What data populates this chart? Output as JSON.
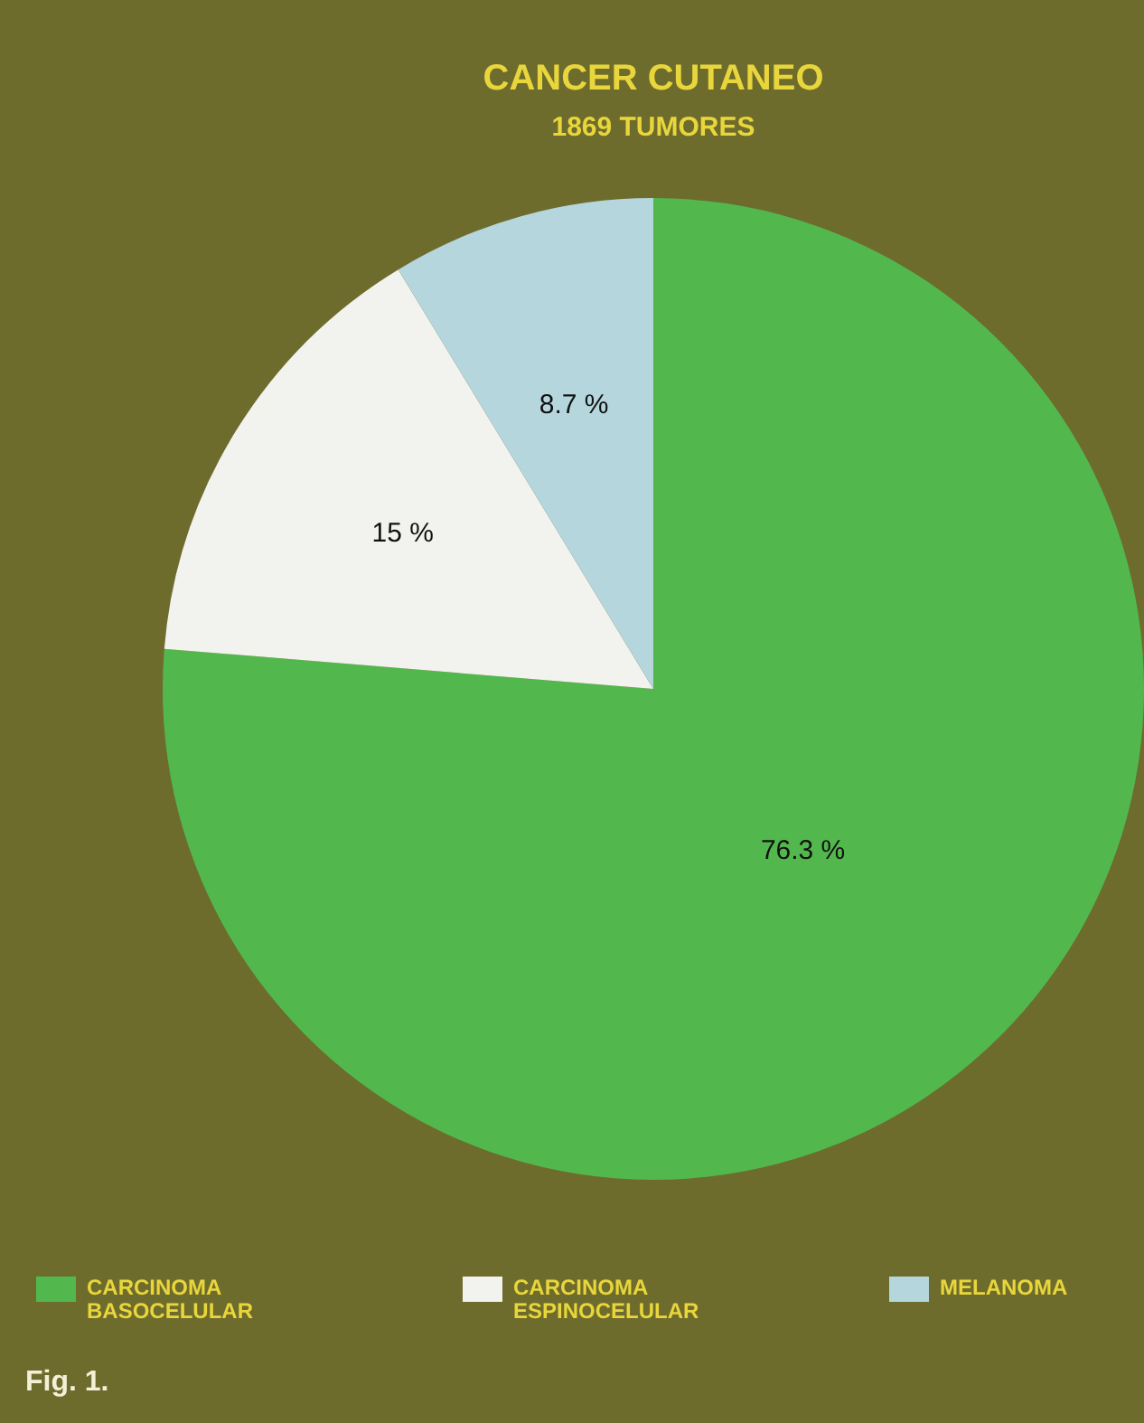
{
  "chart_data": {
    "type": "pie",
    "title": "CANCER CUTANEO",
    "subtitle": "1869 TUMORES",
    "categories": [
      "CARCINOMA BASOCELULAR",
      "CARCINOMA ESPINOCELULAR",
      "MELANOMA"
    ],
    "values": [
      76.3,
      15,
      8.7
    ],
    "colors": [
      "#52b84e",
      "#f2f2ee",
      "#b4d6dc"
    ],
    "value_labels": [
      "76.3 %",
      "15 %",
      "8.7 %"
    ],
    "legend": "bottom",
    "annotations": [
      "Fig. 1."
    ]
  }
}
